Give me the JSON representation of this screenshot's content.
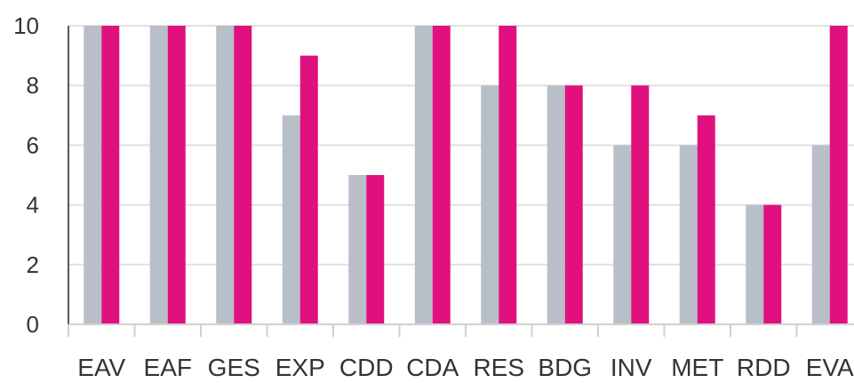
{
  "chart_data": {
    "type": "bar",
    "categories": [
      "EAV",
      "EAF",
      "GES",
      "EXP",
      "CDD",
      "CDA",
      "RES",
      "BDG",
      "INV",
      "MET",
      "RDD",
      "EVA"
    ],
    "series": [
      {
        "color": "#b8bfc8",
        "values": [
          10,
          10,
          10,
          7,
          5,
          10,
          8,
          8,
          6,
          6,
          4,
          6
        ]
      },
      {
        "color": "#e0117f",
        "values": [
          10,
          10,
          10,
          9,
          5,
          10,
          10,
          8,
          8,
          7,
          4,
          10
        ]
      }
    ],
    "yticks": [
      0,
      2,
      4,
      6,
      8,
      10
    ],
    "ylim": [
      0,
      10
    ],
    "grid": true,
    "legend": "none"
  }
}
